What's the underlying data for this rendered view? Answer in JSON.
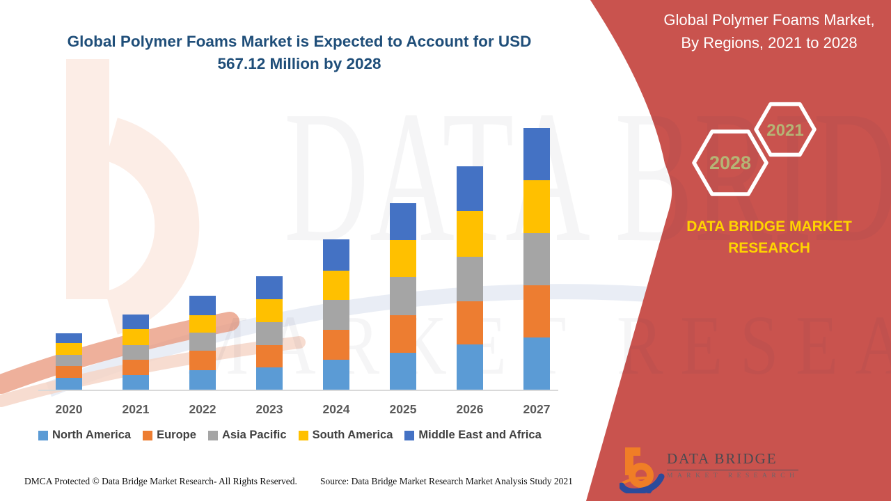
{
  "main_title": "Global Polymer Foams Market is Expected to Account for USD 567.12 Million by 2028",
  "side_panel": {
    "title": "Global Polymer Foams Market, By Regions, 2021 to 2028",
    "hexagon_years": [
      "2028",
      "2021"
    ],
    "brand_text": "DATA BRIDGE MARKET RESEARCH",
    "logo_name": "DATA BRIDGE",
    "logo_sub": "MARKET RESEARCH",
    "background_color": "#C9534E",
    "brand_text_color": "#FFD400",
    "hexagon_text_color": "#B5B475"
  },
  "watermark": {
    "line1": "DATA BRIDGE",
    "line2": "MARKET RESEARCH"
  },
  "footer": {
    "dmca": "DMCA Protected © Data Bridge Market Research- All Rights Reserved.",
    "source": "Source: Data Bridge Market Research Market Analysis Study 2021"
  },
  "colors": {
    "title": "#1F4E79",
    "axis_label": "#595959",
    "legend_text": "#404040",
    "baseline": "#D9D9D9",
    "panel_red": "#C9534E"
  },
  "chart_data": {
    "type": "bar",
    "stacked": true,
    "title": "Global Polymer Foams Market is Expected to Account for USD 567.12 Million by 2028",
    "categories": [
      "2020",
      "2021",
      "2022",
      "2023",
      "2024",
      "2025",
      "2026",
      "2027"
    ],
    "series": [
      {
        "name": "North America",
        "color": "#5B9BD5",
        "values": [
          17,
          21,
          28,
          32,
          43,
          53,
          65,
          75
        ]
      },
      {
        "name": "Europe",
        "color": "#ED7D31",
        "values": [
          17,
          22,
          28,
          32,
          43,
          54,
          62,
          75
        ]
      },
      {
        "name": "Asia Pacific",
        "color": "#A5A5A5",
        "values": [
          16,
          21,
          26,
          33,
          43,
          55,
          64,
          75
        ]
      },
      {
        "name": "South America",
        "color": "#FFC000",
        "values": [
          17,
          23,
          25,
          33,
          42,
          53,
          66,
          76
        ]
      },
      {
        "name": "Middle East and Africa",
        "color": "#4472C4",
        "values": [
          14,
          21,
          28,
          33,
          45,
          53,
          64,
          75
        ]
      }
    ],
    "totals": [
      81,
      108,
      135,
      163,
      216,
      268,
      321,
      376
    ],
    "value_unit": "relative stacked height (no y-axis shown in source image)",
    "xlabel": "Year",
    "ylabel": "",
    "ylim": [
      0,
      400
    ],
    "legend_position": "bottom",
    "grid": false,
    "y_axis_shown": false
  }
}
